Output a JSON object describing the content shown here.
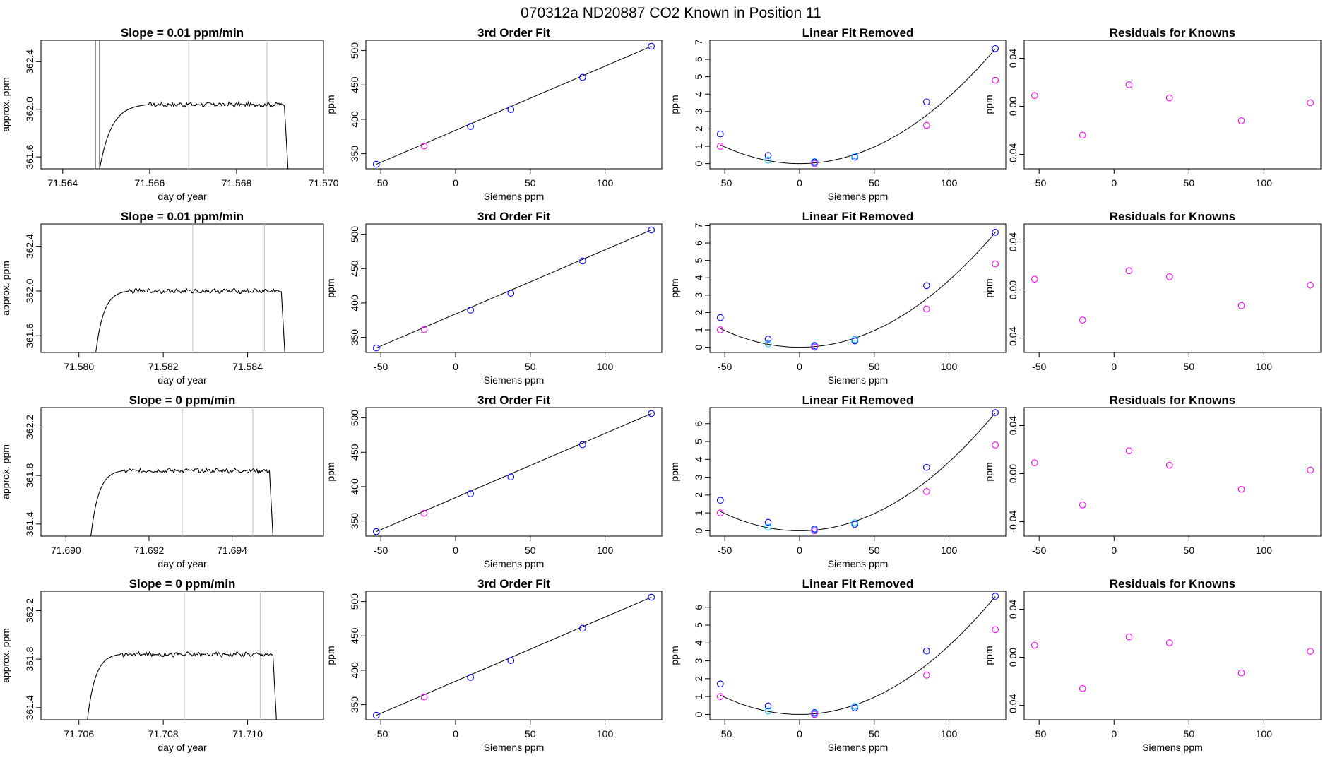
{
  "figure": {
    "title": "070312a      ND20887    CO2 Known in Position  11"
  },
  "chart_data": [
    {
      "row": 0,
      "type": "line",
      "title": "Slope =  0.01  ppm/min",
      "xlabel": "day of year",
      "ylabel": "approx. ppm",
      "xlim": [
        71.5635,
        71.57
      ],
      "ylim": [
        361.5,
        362.58
      ],
      "xticks": [
        71.564,
        71.566,
        71.568,
        71.57
      ],
      "xtick_decimals": 3,
      "yticks": [
        361.6,
        362.0,
        362.4
      ],
      "ytick_decimals": 1,
      "vlines": [
        71.5669,
        71.5687
      ],
      "spike": {
        "x1": 71.56475,
        "x2": 71.56485
      },
      "trace": {
        "start": 71.56485,
        "rise_end": 71.566,
        "end": 71.5691,
        "drop": 71.5692,
        "level": 362.04,
        "low": 361.5
      }
    },
    {
      "row": 0,
      "type": "scatter",
      "title": "3rd Order Fit",
      "xlabel": "Siemens ppm",
      "ylabel": "ppm",
      "xlim": [
        -60,
        138
      ],
      "ylim": [
        328,
        515
      ],
      "xticks": [
        -50,
        0,
        50,
        100
      ],
      "yticks": [
        350,
        400,
        450,
        500
      ],
      "series": [
        {
          "name": "",
          "color": "#0000ff",
          "x": [
            -53,
            10,
            37,
            85,
            131
          ],
          "y": [
            334.6,
            389.7,
            414.2,
            461.1,
            506.3
          ]
        },
        {
          "name": "",
          "color": "#ff00ff",
          "x": [
            -21
          ],
          "y": [
            361.3
          ]
        }
      ],
      "fit": [
        [
          -53,
          334.6
        ],
        [
          131,
          506.3
        ]
      ]
    },
    {
      "row": 0,
      "type": "scatter",
      "title": "Linear Fit Removed",
      "xlabel": "Siemens ppm",
      "ylabel": "ppm",
      "xlim": [
        -60,
        138
      ],
      "ylim": [
        -0.3,
        7.1
      ],
      "xticks": [
        -50,
        0,
        50,
        100
      ],
      "yticks": [
        0,
        1,
        2,
        3,
        4,
        5,
        6,
        7
      ],
      "series": [
        {
          "name": "",
          "color": "#0000ff",
          "x": [
            -53,
            -21,
            10,
            37,
            85,
            131
          ],
          "y": [
            1.71,
            0.47,
            0.1,
            0.37,
            3.55,
            6.62
          ]
        },
        {
          "name": "",
          "color": "#00bfff",
          "x": [
            -21,
            10,
            37
          ],
          "y": [
            0.2,
            0.05,
            0.45
          ]
        },
        {
          "name": "",
          "color": "#ff00ff",
          "x": [
            -53,
            10,
            85,
            131
          ],
          "y": [
            1.0,
            0.0,
            2.2,
            4.8
          ]
        }
      ],
      "curve": {
        "x0": 0,
        "a": 0.000385,
        "x_from": -53,
        "x_to": 131
      }
    },
    {
      "row": 0,
      "type": "scatter",
      "title": "Residuals for Knowns",
      "xlabel": "",
      "ylabel": "ppm",
      "xlim": [
        -60,
        138
      ],
      "ylim": [
        -0.052,
        0.055
      ],
      "xticks": [
        -50,
        0,
        50,
        100
      ],
      "yticks": [
        -0.04,
        0.0,
        0.04
      ],
      "ytick_decimals": 2,
      "series": [
        {
          "name": "",
          "color": "#ff00ff",
          "x": [
            -53,
            -21,
            10,
            37,
            85,
            131
          ],
          "y": [
            0.009,
            -0.024,
            0.018,
            0.007,
            -0.012,
            0.003
          ]
        }
      ]
    },
    {
      "row": 1,
      "type": "line",
      "title": "Slope =  0.01  ppm/min",
      "xlabel": "day of year",
      "ylabel": "approx. ppm",
      "xlim": [
        71.5791,
        71.5858
      ],
      "ylim": [
        361.45,
        362.6
      ],
      "xticks": [
        71.58,
        71.582,
        71.584
      ],
      "xtick_decimals": 3,
      "yticks": [
        361.6,
        362.0,
        362.4
      ],
      "ytick_decimals": 1,
      "vlines": [
        71.5827,
        71.5844
      ],
      "trace": {
        "start": 71.5804,
        "rise_end": 71.5812,
        "end": 71.5848,
        "drop": 71.5849,
        "level": 362.0,
        "low": 361.45
      }
    },
    {
      "row": 1,
      "type": "scatter",
      "title": "3rd Order Fit",
      "xlabel": "Siemens ppm",
      "ylabel": "ppm",
      "xlim": [
        -60,
        138
      ],
      "ylim": [
        328,
        515
      ],
      "xticks": [
        -50,
        0,
        50,
        100
      ],
      "yticks": [
        350,
        400,
        450,
        500
      ],
      "series": [
        {
          "name": "",
          "color": "#0000ff",
          "x": [
            -53,
            10,
            37,
            85,
            131
          ],
          "y": [
            334.6,
            389.7,
            414.2,
            461.1,
            506.3
          ]
        },
        {
          "name": "",
          "color": "#ff00ff",
          "x": [
            -21
          ],
          "y": [
            361.3
          ]
        }
      ],
      "fit": [
        [
          -53,
          334.6
        ],
        [
          131,
          506.3
        ]
      ]
    },
    {
      "row": 1,
      "type": "scatter",
      "title": "Linear Fit Removed",
      "xlabel": "Siemens ppm",
      "ylabel": "ppm",
      "xlim": [
        -60,
        138
      ],
      "ylim": [
        -0.3,
        7.1
      ],
      "xticks": [
        -50,
        0,
        50,
        100
      ],
      "yticks": [
        0,
        1,
        2,
        3,
        4,
        5,
        6,
        7
      ],
      "series": [
        {
          "name": "",
          "color": "#0000ff",
          "x": [
            -53,
            -21,
            10,
            37,
            85,
            131
          ],
          "y": [
            1.71,
            0.47,
            0.1,
            0.37,
            3.55,
            6.62
          ]
        },
        {
          "name": "",
          "color": "#00bfff",
          "x": [
            -21,
            10,
            37
          ],
          "y": [
            0.2,
            0.05,
            0.45
          ]
        },
        {
          "name": "",
          "color": "#ff00ff",
          "x": [
            -53,
            10,
            85,
            131
          ],
          "y": [
            1.0,
            0.0,
            2.2,
            4.8
          ]
        }
      ],
      "curve": {
        "x0": 0,
        "a": 0.000385,
        "x_from": -53,
        "x_to": 131
      }
    },
    {
      "row": 1,
      "type": "scatter",
      "title": "Residuals for Knowns",
      "xlabel": "",
      "ylabel": "ppm",
      "xlim": [
        -60,
        138
      ],
      "ylim": [
        -0.052,
        0.055
      ],
      "xticks": [
        -50,
        0,
        50,
        100
      ],
      "yticks": [
        -0.04,
        0.0,
        0.04
      ],
      "ytick_decimals": 2,
      "series": [
        {
          "name": "",
          "color": "#ff00ff",
          "x": [
            -53,
            -21,
            10,
            37,
            85,
            131
          ],
          "y": [
            0.009,
            -0.025,
            0.016,
            0.011,
            -0.013,
            0.004
          ]
        }
      ]
    },
    {
      "row": 2,
      "type": "line",
      "title": "Slope =  0  ppm/min",
      "xlabel": "day of year",
      "ylabel": "approx. ppm",
      "xlim": [
        71.6894,
        71.6962
      ],
      "ylim": [
        361.3,
        362.36
      ],
      "xticks": [
        71.69,
        71.692,
        71.694
      ],
      "xtick_decimals": 3,
      "yticks": [
        361.4,
        361.8,
        362.2
      ],
      "ytick_decimals": 1,
      "vlines": [
        71.6928,
        71.6945
      ],
      "trace": {
        "start": 71.6906,
        "rise_end": 71.6914,
        "end": 71.6949,
        "drop": 71.695,
        "level": 361.84,
        "low": 361.3
      }
    },
    {
      "row": 2,
      "type": "scatter",
      "title": "3rd Order Fit",
      "xlabel": "Siemens ppm",
      "ylabel": "ppm",
      "xlim": [
        -60,
        138
      ],
      "ylim": [
        328,
        515
      ],
      "xticks": [
        -50,
        0,
        50,
        100
      ],
      "yticks": [
        350,
        400,
        450,
        500
      ],
      "series": [
        {
          "name": "",
          "color": "#0000ff",
          "x": [
            -53,
            10,
            37,
            85,
            131
          ],
          "y": [
            334.6,
            389.7,
            414.2,
            461.1,
            506.3
          ]
        },
        {
          "name": "",
          "color": "#ff00ff",
          "x": [
            -21
          ],
          "y": [
            361.3
          ]
        }
      ],
      "fit": [
        [
          -53,
          334.6
        ],
        [
          131,
          506.3
        ]
      ]
    },
    {
      "row": 2,
      "type": "scatter",
      "title": "Linear Fit Removed",
      "xlabel": "Siemens ppm",
      "ylabel": "ppm",
      "xlim": [
        -60,
        138
      ],
      "ylim": [
        -0.3,
        6.9
      ],
      "xticks": [
        -50,
        0,
        50,
        100
      ],
      "yticks": [
        0,
        1,
        2,
        3,
        4,
        5,
        6
      ],
      "series": [
        {
          "name": "",
          "color": "#0000ff",
          "x": [
            -53,
            -21,
            10,
            37,
            85,
            131
          ],
          "y": [
            1.71,
            0.47,
            0.1,
            0.37,
            3.55,
            6.62
          ]
        },
        {
          "name": "",
          "color": "#00bfff",
          "x": [
            -21,
            10,
            37
          ],
          "y": [
            0.2,
            0.05,
            0.45
          ]
        },
        {
          "name": "",
          "color": "#ff00ff",
          "x": [
            -53,
            10,
            85,
            131
          ],
          "y": [
            1.0,
            0.0,
            2.2,
            4.8
          ]
        }
      ],
      "curve": {
        "x0": 0,
        "a": 0.000385,
        "x_from": -53,
        "x_to": 131
      }
    },
    {
      "row": 2,
      "type": "scatter",
      "title": "Residuals for Knowns",
      "xlabel": "",
      "ylabel": "ppm",
      "xlim": [
        -60,
        138
      ],
      "ylim": [
        -0.052,
        0.055
      ],
      "xticks": [
        -50,
        0,
        50,
        100
      ],
      "yticks": [
        -0.04,
        0.0,
        0.04
      ],
      "ytick_decimals": 2,
      "series": [
        {
          "name": "",
          "color": "#ff00ff",
          "x": [
            -53,
            -21,
            10,
            37,
            85,
            131
          ],
          "y": [
            0.009,
            -0.026,
            0.019,
            0.007,
            -0.013,
            0.003
          ]
        }
      ]
    },
    {
      "row": 3,
      "type": "line",
      "title": "Slope =  0  ppm/min",
      "xlabel": "day of year",
      "ylabel": "approx. ppm",
      "xlim": [
        71.7051,
        71.7118
      ],
      "ylim": [
        361.3,
        362.36
      ],
      "xticks": [
        71.706,
        71.708,
        71.71
      ],
      "xtick_decimals": 3,
      "yticks": [
        361.4,
        361.8,
        362.2
      ],
      "ytick_decimals": 1,
      "vlines": [
        71.7085,
        71.7103
      ],
      "trace": {
        "start": 71.7062,
        "rise_end": 71.707,
        "end": 71.7106,
        "drop": 71.7107,
        "level": 361.84,
        "low": 361.3
      }
    },
    {
      "row": 3,
      "type": "scatter",
      "title": "3rd Order Fit",
      "xlabel": "Siemens ppm",
      "ylabel": "ppm",
      "xlim": [
        -60,
        138
      ],
      "ylim": [
        328,
        515
      ],
      "xticks": [
        -50,
        0,
        50,
        100
      ],
      "yticks": [
        350,
        400,
        450,
        500
      ],
      "series": [
        {
          "name": "",
          "color": "#0000ff",
          "x": [
            -53,
            10,
            37,
            85,
            131
          ],
          "y": [
            334.6,
            389.7,
            414.2,
            461.1,
            506.3
          ]
        },
        {
          "name": "",
          "color": "#ff00ff",
          "x": [
            -21
          ],
          "y": [
            361.3
          ]
        }
      ],
      "fit": [
        [
          -53,
          334.6
        ],
        [
          131,
          506.3
        ]
      ]
    },
    {
      "row": 3,
      "type": "scatter",
      "title": "Linear Fit Removed",
      "xlabel": "Siemens ppm",
      "ylabel": "ppm",
      "xlim": [
        -60,
        138
      ],
      "ylim": [
        -0.3,
        6.9
      ],
      "xticks": [
        -50,
        0,
        50,
        100
      ],
      "yticks": [
        0,
        1,
        2,
        3,
        4,
        5,
        6
      ],
      "series": [
        {
          "name": "",
          "color": "#0000ff",
          "x": [
            -53,
            -21,
            10,
            37,
            85,
            131
          ],
          "y": [
            1.71,
            0.47,
            0.1,
            0.37,
            3.55,
            6.62
          ]
        },
        {
          "name": "",
          "color": "#00bfff",
          "x": [
            -21,
            10,
            37
          ],
          "y": [
            0.2,
            0.05,
            0.45
          ]
        },
        {
          "name": "",
          "color": "#ff00ff",
          "x": [
            -53,
            10,
            85,
            131
          ],
          "y": [
            1.0,
            0.0,
            2.2,
            4.75
          ]
        }
      ],
      "curve": {
        "x0": 0,
        "a": 0.000385,
        "x_from": -53,
        "x_to": 131
      }
    },
    {
      "row": 3,
      "type": "scatter",
      "title": "Residuals for Knowns",
      "xlabel": "Siemens ppm",
      "ylabel": "ppm",
      "xlim": [
        -60,
        138
      ],
      "ylim": [
        -0.052,
        0.055
      ],
      "xticks": [
        -50,
        0,
        50,
        100
      ],
      "yticks": [
        -0.04,
        0.0,
        0.04
      ],
      "ytick_decimals": 2,
      "series": [
        {
          "name": "",
          "color": "#ff00ff",
          "x": [
            -53,
            -21,
            10,
            37,
            85,
            131
          ],
          "y": [
            0.01,
            -0.026,
            0.017,
            0.012,
            -0.013,
            0.005
          ]
        }
      ]
    }
  ]
}
